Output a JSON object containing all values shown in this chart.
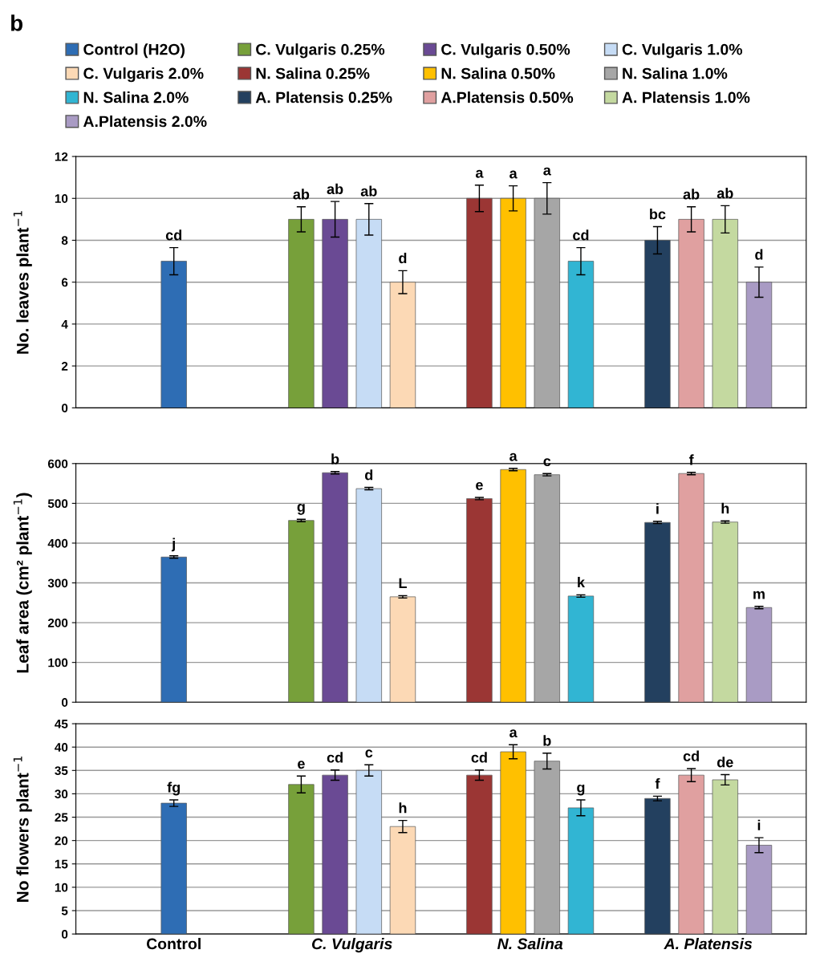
{
  "chart_data": [
    {
      "type": "bar",
      "annotations": [
        "b"
      ],
      "ylabel": "No. leaves plant$^{−1}$",
      "ylim": [
        0,
        12
      ],
      "yticks": [
        0,
        2,
        4,
        6,
        8,
        10,
        12
      ],
      "grid": "y",
      "legend": "top",
      "tick_labels": "y",
      "categories": [
        null,
        null,
        null,
        null
      ],
      "series": [
        {
          "name": "Control (H2O)",
          "color": "#2e6db4",
          "values": [
            7,
            null,
            null,
            null
          ],
          "errors": [
            0.65,
            null,
            null,
            null
          ],
          "value_labels": [
            "cd",
            null,
            null,
            null
          ]
        },
        {
          "name": "C. Vulgaris 0.25%",
          "color": "#77a03a",
          "values": [
            null,
            9,
            null,
            null
          ],
          "errors": [
            null,
            0.6,
            null,
            null
          ],
          "value_labels": [
            null,
            "ab",
            null,
            null
          ]
        },
        {
          "name": "C. Vulgaris 0.50%",
          "color": "#6a4a94",
          "values": [
            null,
            9,
            null,
            null
          ],
          "errors": [
            null,
            0.85,
            null,
            null
          ],
          "value_labels": [
            null,
            "ab",
            null,
            null
          ]
        },
        {
          "name": "C. Vulgaris 1.0%",
          "color": "#c6dcf5",
          "values": [
            null,
            9,
            null,
            null
          ],
          "errors": [
            null,
            0.75,
            null,
            null
          ],
          "value_labels": [
            null,
            "ab",
            null,
            null
          ]
        },
        {
          "name": "C. Vulgaris 2.0%",
          "color": "#fcd9b5",
          "values": [
            null,
            6,
            null,
            null
          ],
          "errors": [
            null,
            0.55,
            null,
            null
          ],
          "value_labels": [
            null,
            "d",
            null,
            null
          ]
        },
        {
          "name": "N. Salina 0.25%",
          "color": "#9b3634",
          "values": [
            null,
            null,
            10,
            null
          ],
          "errors": [
            null,
            null,
            0.63,
            null
          ],
          "value_labels": [
            null,
            null,
            "a",
            null
          ]
        },
        {
          "name": "N. Salina 0.50%",
          "color": "#ffc000",
          "values": [
            null,
            null,
            10,
            null
          ],
          "errors": [
            null,
            null,
            0.6,
            null
          ],
          "value_labels": [
            null,
            null,
            "a",
            null
          ]
        },
        {
          "name": "N. Salina 1.0%",
          "color": "#a6a6a6",
          "values": [
            null,
            null,
            10,
            null
          ],
          "errors": [
            null,
            null,
            0.75,
            null
          ],
          "value_labels": [
            null,
            null,
            "a",
            null
          ]
        },
        {
          "name": "N. Salina 2.0%",
          "color": "#31b5d3",
          "values": [
            null,
            null,
            7,
            null
          ],
          "errors": [
            null,
            null,
            0.65,
            null
          ],
          "value_labels": [
            null,
            null,
            "cd",
            null
          ]
        },
        {
          "name": "A. Platensis 0.25%",
          "color": "#23405f",
          "values": [
            null,
            null,
            null,
            8
          ],
          "errors": [
            null,
            null,
            null,
            0.65
          ],
          "value_labels": [
            null,
            null,
            null,
            "bc"
          ]
        },
        {
          "name": "A.Platensis 0.50%",
          "color": "#e0a0a0",
          "values": [
            null,
            null,
            null,
            9
          ],
          "errors": [
            null,
            null,
            null,
            0.6
          ],
          "value_labels": [
            null,
            null,
            null,
            "ab"
          ]
        },
        {
          "name": "A. Platensis 1.0%",
          "color": "#c4d9a0",
          "values": [
            null,
            null,
            null,
            9
          ],
          "errors": [
            null,
            null,
            null,
            0.65
          ],
          "value_labels": [
            null,
            null,
            null,
            "ab"
          ]
        },
        {
          "name": "A.Platensis 2.0%",
          "color": "#a99bc4",
          "values": [
            null,
            null,
            null,
            6
          ],
          "errors": [
            null,
            null,
            null,
            0.72
          ],
          "value_labels": [
            null,
            null,
            null,
            "d"
          ]
        }
      ]
    },
    {
      "type": "bar",
      "ylabel": "Leaf area (cm² plant$^{−1}$)",
      "ylim": [
        0,
        600
      ],
      "yticks": [
        0,
        100,
        200,
        300,
        400,
        500,
        600
      ],
      "grid": "y",
      "tick_labels": "y",
      "categories": [
        null,
        null,
        null,
        null
      ],
      "series": [
        {
          "color": "#2e6db4",
          "values": [
            365,
            null,
            null,
            null
          ],
          "errors": [
            3,
            null,
            null,
            null
          ],
          "value_labels": [
            "j",
            null,
            null,
            null
          ]
        },
        {
          "color": "#77a03a",
          "values": [
            null,
            457,
            null,
            null
          ],
          "errors": [
            null,
            3,
            null,
            null
          ],
          "value_labels": [
            null,
            "g",
            null,
            null
          ]
        },
        {
          "color": "#6a4a94",
          "values": [
            null,
            577,
            null,
            null
          ],
          "errors": [
            null,
            3,
            null,
            null
          ],
          "value_labels": [
            null,
            "b",
            null,
            null
          ]
        },
        {
          "color": "#c6dcf5",
          "values": [
            null,
            537,
            null,
            null
          ],
          "errors": [
            null,
            3,
            null,
            null
          ],
          "value_labels": [
            null,
            "d",
            null,
            null
          ]
        },
        {
          "color": "#fcd9b5",
          "values": [
            null,
            265,
            null,
            null
          ],
          "errors": [
            null,
            3,
            null,
            null
          ],
          "value_labels": [
            null,
            "L",
            null,
            null
          ]
        },
        {
          "color": "#9b3634",
          "values": [
            null,
            null,
            512,
            null
          ],
          "errors": [
            null,
            null,
            3,
            null
          ],
          "value_labels": [
            null,
            null,
            "e",
            null
          ]
        },
        {
          "color": "#ffc000",
          "values": [
            null,
            null,
            585,
            null
          ],
          "errors": [
            null,
            null,
            3,
            null
          ],
          "value_labels": [
            null,
            null,
            "a",
            null
          ]
        },
        {
          "color": "#a6a6a6",
          "values": [
            null,
            null,
            572,
            null
          ],
          "errors": [
            null,
            null,
            3,
            null
          ],
          "value_labels": [
            null,
            null,
            "c",
            null
          ]
        },
        {
          "color": "#31b5d3",
          "values": [
            null,
            null,
            267,
            null
          ],
          "errors": [
            null,
            null,
            3,
            null
          ],
          "value_labels": [
            null,
            null,
            "k",
            null
          ]
        },
        {
          "color": "#23405f",
          "values": [
            null,
            null,
            null,
            452
          ],
          "errors": [
            null,
            null,
            null,
            3
          ],
          "value_labels": [
            null,
            null,
            null,
            "i"
          ]
        },
        {
          "color": "#e0a0a0",
          "values": [
            null,
            null,
            null,
            575
          ],
          "errors": [
            null,
            null,
            null,
            3
          ],
          "value_labels": [
            null,
            null,
            null,
            "f"
          ]
        },
        {
          "color": "#c4d9a0",
          "values": [
            null,
            null,
            null,
            453
          ],
          "errors": [
            null,
            null,
            null,
            3
          ],
          "value_labels": [
            null,
            null,
            null,
            "h"
          ]
        },
        {
          "color": "#a99bc4",
          "values": [
            null,
            null,
            null,
            238
          ],
          "errors": [
            null,
            null,
            null,
            3
          ],
          "value_labels": [
            null,
            null,
            null,
            "m"
          ]
        }
      ]
    },
    {
      "type": "bar",
      "ylabel": "No flowers plant$^{−1}$",
      "ylim": [
        0,
        45
      ],
      "yticks": [
        0,
        5,
        10,
        15,
        20,
        25,
        30,
        35,
        40,
        45
      ],
      "grid": "y",
      "categories": [
        "Control",
        "C. Vulgaris",
        "N. Salina",
        "A. Platensis"
      ],
      "series": [
        {
          "color": "#2e6db4",
          "values": [
            28,
            null,
            null,
            null
          ],
          "errors": [
            0.7,
            null,
            null,
            null
          ],
          "value_labels": [
            "fg",
            null,
            null,
            null
          ]
        },
        {
          "color": "#77a03a",
          "values": [
            null,
            32,
            null,
            null
          ],
          "errors": [
            null,
            1.8,
            null,
            null
          ],
          "value_labels": [
            null,
            "e",
            null,
            null
          ]
        },
        {
          "color": "#6a4a94",
          "values": [
            null,
            34,
            null,
            null
          ],
          "errors": [
            null,
            1.1,
            null,
            null
          ],
          "value_labels": [
            null,
            "cd",
            null,
            null
          ]
        },
        {
          "color": "#c6dcf5",
          "values": [
            null,
            35,
            null,
            null
          ],
          "errors": [
            null,
            1.2,
            null,
            null
          ],
          "value_labels": [
            null,
            "c",
            null,
            null
          ]
        },
        {
          "color": "#fcd9b5",
          "values": [
            null,
            23,
            null,
            null
          ],
          "errors": [
            null,
            1.3,
            null,
            null
          ],
          "value_labels": [
            null,
            "h",
            null,
            null
          ]
        },
        {
          "color": "#9b3634",
          "values": [
            null,
            null,
            34,
            null
          ],
          "errors": [
            null,
            null,
            1.1,
            null
          ],
          "value_labels": [
            null,
            null,
            "cd",
            null
          ]
        },
        {
          "color": "#ffc000",
          "values": [
            null,
            null,
            39,
            null
          ],
          "errors": [
            null,
            null,
            1.5,
            null
          ],
          "value_labels": [
            null,
            null,
            "a",
            null
          ]
        },
        {
          "color": "#a6a6a6",
          "values": [
            null,
            null,
            37,
            null
          ],
          "errors": [
            null,
            null,
            1.7,
            null
          ],
          "value_labels": [
            null,
            null,
            "b",
            null
          ]
        },
        {
          "color": "#31b5d3",
          "values": [
            null,
            null,
            27,
            null
          ],
          "errors": [
            null,
            null,
            1.7,
            null
          ],
          "value_labels": [
            null,
            null,
            "g",
            null
          ]
        },
        {
          "color": "#23405f",
          "values": [
            null,
            null,
            null,
            29
          ],
          "errors": [
            null,
            null,
            null,
            0.5
          ],
          "value_labels": [
            null,
            null,
            null,
            "f"
          ]
        },
        {
          "color": "#e0a0a0",
          "values": [
            null,
            null,
            null,
            34
          ],
          "errors": [
            null,
            null,
            null,
            1.4
          ],
          "value_labels": [
            null,
            null,
            null,
            "cd"
          ]
        },
        {
          "color": "#c4d9a0",
          "values": [
            null,
            null,
            null,
            33
          ],
          "errors": [
            null,
            null,
            null,
            1.1
          ],
          "value_labels": [
            null,
            null,
            null,
            "de"
          ]
        },
        {
          "color": "#a99bc4",
          "values": [
            null,
            null,
            null,
            19
          ],
          "errors": [
            null,
            null,
            null,
            1.6
          ],
          "value_labels": [
            null,
            null,
            null,
            "i"
          ]
        }
      ]
    }
  ]
}
